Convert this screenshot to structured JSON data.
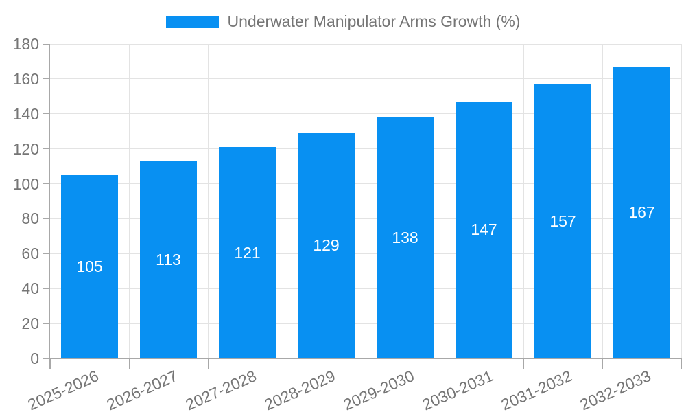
{
  "legend": {
    "label": "Underwater Manipulator Arms Growth (%)"
  },
  "chart_data": {
    "type": "bar",
    "title": "Underwater Manipulator Arms Growth (%)",
    "categories": [
      "2025-2026",
      "2026-2027",
      "2027-2028",
      "2028-2029",
      "2029-2030",
      "2030-2031",
      "2031-2032",
      "2032-2033"
    ],
    "values": [
      105,
      113,
      121,
      129,
      138,
      147,
      157,
      167
    ],
    "xlabel": "",
    "ylabel": "",
    "ylim": [
      0,
      180
    ],
    "ytick_step": 20,
    "grid": true,
    "legend_position": "top-center",
    "colors": {
      "bar": "#0890f2",
      "tick_text": "#757575",
      "value_text": "#ffffff",
      "grid_line": "#e3e3e3",
      "axis_line": "#a8a8a8"
    }
  }
}
